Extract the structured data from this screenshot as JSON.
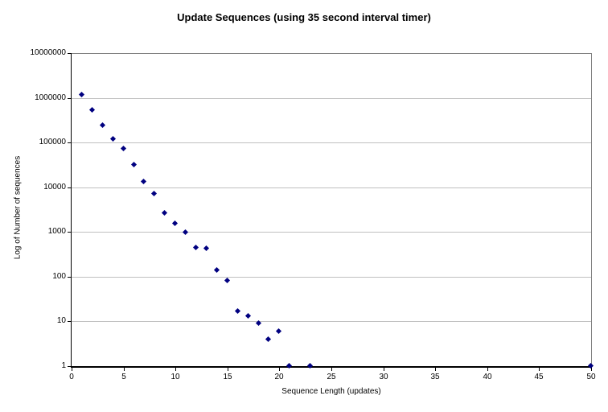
{
  "chart_data": {
    "type": "scatter",
    "title": "Update Sequences (using 35 second interval timer)",
    "xlabel": "Sequence Length (updates)",
    "ylabel": "Log of Number of sequences",
    "y_scale": "log",
    "xlim": [
      0,
      50
    ],
    "ylim": [
      1,
      10000000
    ],
    "x_ticks": [
      0,
      5,
      10,
      15,
      20,
      25,
      30,
      35,
      40,
      45,
      50
    ],
    "y_ticks": [
      1,
      10,
      100,
      1000,
      10000,
      100000,
      1000000,
      10000000
    ],
    "grid": "horizontal",
    "legend": "none",
    "marker": {
      "shape": "diamond",
      "size": 7
    },
    "colors": {
      "marker": "#000080",
      "gridline": "#c0c0c0",
      "plot_border": "#808080",
      "axis": "#000000",
      "background": "#ffffff",
      "text": "#000000"
    },
    "points": [
      {
        "x": 1,
        "y": 1150000
      },
      {
        "x": 2,
        "y": 520000
      },
      {
        "x": 3,
        "y": 240000
      },
      {
        "x": 4,
        "y": 117000
      },
      {
        "x": 5,
        "y": 71000
      },
      {
        "x": 6,
        "y": 32000
      },
      {
        "x": 7,
        "y": 13000
      },
      {
        "x": 8,
        "y": 7000
      },
      {
        "x": 9,
        "y": 2650
      },
      {
        "x": 10,
        "y": 1550
      },
      {
        "x": 11,
        "y": 970
      },
      {
        "x": 12,
        "y": 440
      },
      {
        "x": 13,
        "y": 420
      },
      {
        "x": 14,
        "y": 138
      },
      {
        "x": 15,
        "y": 80
      },
      {
        "x": 16,
        "y": 17
      },
      {
        "x": 17,
        "y": 13
      },
      {
        "x": 18,
        "y": 9
      },
      {
        "x": 19,
        "y": 4
      },
      {
        "x": 20,
        "y": 6
      },
      {
        "x": 21,
        "y": 1
      },
      {
        "x": 23,
        "y": 1
      },
      {
        "x": 50,
        "y": 1
      }
    ]
  }
}
